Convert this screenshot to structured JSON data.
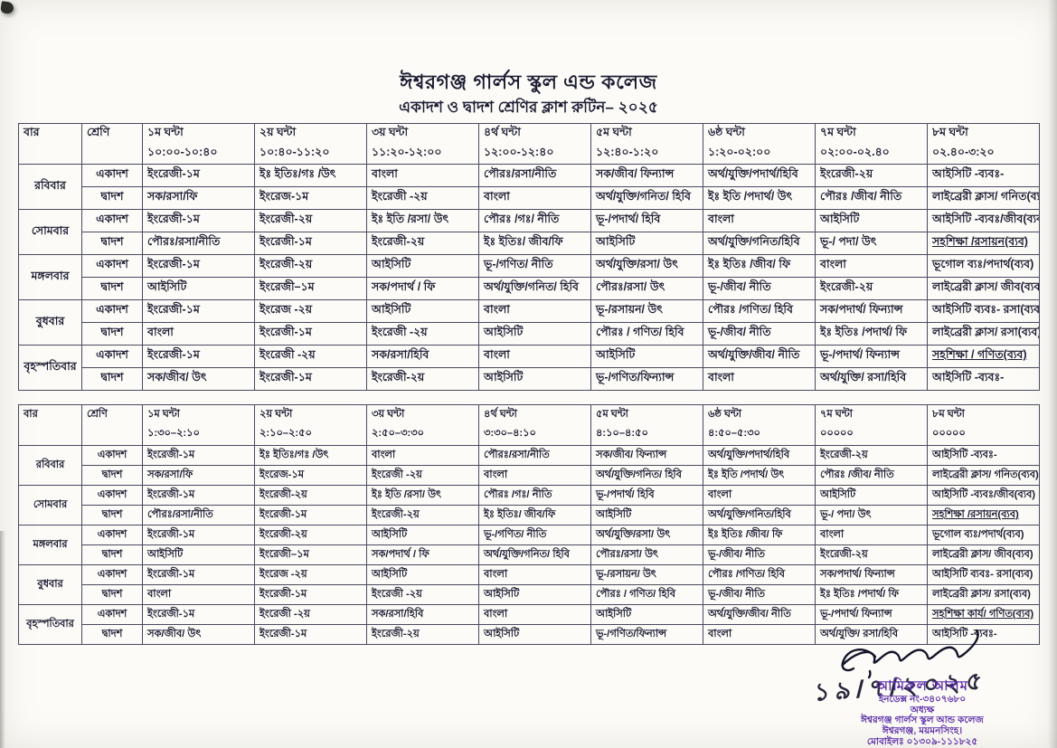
{
  "page": {
    "title": "ঈশ্বরগঞ্জ গার্লস স্কুল এন্ড কলেজ",
    "subtitle": "একাদশ ও দ্বাদশ শ্রেণির ক্লাশ রুটিন– ২০২৫"
  },
  "colors": {
    "ink": "#1d1d33",
    "border": "#4a4a5e",
    "stamp": "#5b2da8"
  },
  "tables": [
    {
      "day_label": "বার",
      "class_label": "শ্রেণি",
      "periods": [
        {
          "name": "১ম ঘন্টা",
          "time": "১০:০০-১০:৪০"
        },
        {
          "name": "২য় ঘন্টা",
          "time": "১০:৪০-১১:২০"
        },
        {
          "name": "৩য় ঘন্টা",
          "time": "১১:২০-১২:০০"
        },
        {
          "name": "৪র্থ ঘন্টা",
          "time": "১২:০০-১২:৪০"
        },
        {
          "name": "৫ম ঘন্টা",
          "time": "১২:৪০-১:২০"
        },
        {
          "name": "৬ষ্ঠ ঘন্টা",
          "time": "১:২০-০২:০০"
        },
        {
          "name": "৭ম ঘন্টা",
          "time": "০২:০০-০২.৪০"
        },
        {
          "name": "৮ম ঘন্টা",
          "time": "০২.৪০-৩:২০"
        }
      ],
      "days": [
        {
          "name": "রবিবার",
          "rows": [
            {
              "class": "একাদশ",
              "cells": [
                "ইংরেজী-১ম",
                "ইঃ ইতিঃ/গঃ /উৎ",
                "বাংলা",
                "পৌরঃ/রসা/নীতি",
                "সক/জীব/ ফিন্যান্স",
                "অর্থ/যুক্তি/পদার্থ/হিবি",
                "ইংরেজী-২য়",
                "আইসিটি -ব্যবঃ-"
              ]
            },
            {
              "class": "দ্বাদশ",
              "cells": [
                "সক/রসা/ফি",
                "ইংরেজ-১ম",
                "ইংরেজী -২য়",
                "বাংলা",
                "অর্থ/যুক্তি/গনিত/ হিবি",
                "ইঃ ইতি /পদার্থ/ উৎ",
                "পৌরঃ /জীব/ নীতি",
                "লাইব্রেরী ক্লাস/ গনিত(ব্যব)"
              ]
            }
          ]
        },
        {
          "name": "সোমবার",
          "rows": [
            {
              "class": "একাদশ",
              "cells": [
                "ইংরেজী-১ম",
                "ইংরেজী-২য়",
                "ইঃ ইতি /রসা/ উৎ",
                "পৌরঃ /গঃ/ নীতি",
                "ভূ-/পদার্থ/ হিবি",
                "বাংলা",
                "আইসিটি",
                "আইসিটি -ব্যবঃ/জীব(ব্যব)"
              ]
            },
            {
              "class": "দ্বাদশ",
              "cells": [
                "পৌরঃ/রসা/নীতি",
                "ইংরেজী-১ম",
                "ইংরেজী-২য়",
                "ইঃ ইতিঃ/ জীব/ফি",
                "আইসিটি",
                "অর্থ/যুক্তি/গনিত/হিবি",
                "ভূ-/ পদা/ উৎ",
                "সহশিক্ষা /রসায়ন(ব্যব)"
              ]
            }
          ]
        },
        {
          "name": "মঙ্গলবার",
          "rows": [
            {
              "class": "একাদশ",
              "cells": [
                "ইংরেজী-১ম",
                "ইংরেজী-২য়",
                "আইসিটি",
                "ভূ-/গণিত/ নীতি",
                "অর্থ/যুক্তি/রসা/ উৎ",
                "ইঃ ইতিঃ /জীব/ ফি",
                "বাংলা",
                "ভূগোল ব্যঃ/পদার্থ(ব্যব)"
              ]
            },
            {
              "class": "দ্বাদশ",
              "cells": [
                "আইসিটি",
                "ইংরেজী–১ম",
                "সক/পদার্থ / ফি",
                "অর্থ/যুক্তি/গনিত/ হিবি",
                "পৌরঃ/রসা/ উৎ",
                "ভূ-/জীব/ নীতি",
                "ইংরেজী-২য়",
                "লাইব্রেরী ক্লাস/ জীব(ব্যব)"
              ]
            }
          ]
        },
        {
          "name": "বুধবার",
          "rows": [
            {
              "class": "একাদশ",
              "cells": [
                "ইংরেজী-১ম",
                "ইংরেজ -২য়",
                "আইসিটি",
                "বাংলা",
                "ভূ-/রসায়ন/ উৎ",
                "পৌরঃ /গণিত/ হিবি",
                "সক/পদার্থ/ ফিন্যান্স",
                "আইসিটি ব্যবঃ- রসা(ব্যব)"
              ]
            },
            {
              "class": "দ্বাদশ",
              "cells": [
                "বাংলা",
                "ইংরেজী-১ম",
                "ইংরেজী -২য়",
                "আইসিটি",
                "পৌরঃ / গণিত/ হিবি",
                "ভূ-/জীব/ নীতি",
                "ইঃ ইতিঃ /পদার্থ/ ফি",
                "লাইব্রেরী ক্লাস/ রসা(ব্যব)"
              ]
            }
          ]
        },
        {
          "name": "বৃহস্পতিবার",
          "rows": [
            {
              "class": "একাদশ",
              "cells": [
                "ইংরেজী-১ম",
                "ইংরেজী -২য়",
                "সক/রসা/হিবি",
                "বাংলা",
                "আইসিটি",
                "অর্থ/যুক্তি/জীব/ নীতি",
                "ভূ-/পদার্থ/ ফিন্যান্স",
                "সহশিক্ষা / গণিত(ব্যব)"
              ]
            },
            {
              "class": "দ্বাদশ",
              "cells": [
                "সক/জীব/ উৎ",
                "ইংরেজী-১ম",
                "ইংরেজী-২য়",
                "আইসিটি",
                "ভূ-/গণিত/ফিন্যান্স",
                "বাংলা",
                "অর্থ/যুক্তি/ রসা/হিবি",
                "আইসিটি -ব্যবঃ-"
              ]
            }
          ]
        }
      ],
      "underlined": [
        [
          1,
          1,
          7
        ],
        [
          4,
          0,
          7
        ]
      ]
    },
    {
      "day_label": "বার",
      "class_label": "শ্রেণি",
      "periods": [
        {
          "name": "১ম ঘন্টা",
          "time": "১:৩০–২:১০"
        },
        {
          "name": "২য় ঘন্টা",
          "time": "২:১০–২:৫০"
        },
        {
          "name": "৩য় ঘন্টা",
          "time": "২:৫০–৩:৩০"
        },
        {
          "name": "৪র্থ ঘন্টা",
          "time": "৩:৩০–৪:১০"
        },
        {
          "name": "৫ম ঘন্টা",
          "time": "৪:১০–৪:৫০"
        },
        {
          "name": "৬ষ্ঠ ঘন্টা",
          "time": "৪:৫০–৫:৩০"
        },
        {
          "name": "৭ম ঘন্টা",
          "time": "০০০০০"
        },
        {
          "name": "৮ম ঘন্টা",
          "time": "০০০০০"
        }
      ],
      "days": [
        {
          "name": "রবিবার",
          "rows": [
            {
              "class": "একাদশ",
              "cells": [
                "ইংরেজী-১ম",
                "ইঃ ইতিঃ/গঃ /উৎ",
                "বাংলা",
                "পৌরঃ/রসা/নীতি",
                "সক/জীব/ ফিন্যান্স",
                "অর্থ/যুক্তি/পদার্থ/হিবি",
                "ইংরেজী-২য়",
                "আইসিটি -ব্যবঃ-"
              ]
            },
            {
              "class": "দ্বাদশ",
              "cells": [
                "সক/রসা/ফি",
                "ইংরেজ-১ম",
                "ইংরেজী -২য়",
                "বাংলা",
                "অর্থ/যুক্তি/গনিত/ হিবি",
                "ইঃ ইতি /পদার্থ/ উৎ",
                "পৌরঃ /জীব/ নীতি",
                "লাইব্রেরী ক্লাস/ গনিত(ব্যব)"
              ]
            }
          ]
        },
        {
          "name": "সোমবার",
          "rows": [
            {
              "class": "একাদশ",
              "cells": [
                "ইংরেজী-১ম",
                "ইংরেজী-২য়",
                "ইঃ ইতি /রসা/ উৎ",
                "পৌরঃ /গঃ/ নীতি",
                "ভূ-/পদার্থ/ হিবি",
                "বাংলা",
                "আইসিটি",
                "আইসিটি -ব্যবঃ/জীব(ব্যব)"
              ]
            },
            {
              "class": "দ্বাদশ",
              "cells": [
                "পৌরঃ/রসা/নীতি",
                "ইংরেজী-১ম",
                "ইংরেজী-২য়",
                "ইঃ ইতিঃ/ জীব/ফি",
                "আইসিটি",
                "অর্থ/যুক্তি/গনিত/হিবি",
                "ভূ-/ পদা/ উৎ",
                "সহশিক্ষা /রসায়ন(ব্যব)"
              ]
            }
          ]
        },
        {
          "name": "মঙ্গলবার",
          "rows": [
            {
              "class": "একাদশ",
              "cells": [
                "ইংরেজী-১ম",
                "ইংরেজী-২য়",
                "আইসিটি",
                "ভূ-/গণিত/ নীতি",
                "অর্থ/যুক্তি/রসা/ উৎ",
                "ইঃ ইতিঃ /জীব/ ফি",
                "বাংলা",
                "ভূগোল ব্যঃ/পদার্থ(ব্যব)"
              ]
            },
            {
              "class": "দ্বাদশ",
              "cells": [
                "আইসিটি",
                "ইংরেজী–১ম",
                "সক/পদার্থ / ফি",
                "অর্থ/যুক্তি/গনিত/ হিবি",
                "পৌরঃ/রসা/ উৎ",
                "ভূ-/জীব/ নীতি",
                "ইংরেজী-২য়",
                "লাইব্রেরী ক্লাস/ জীব(ব্যব)"
              ]
            }
          ]
        },
        {
          "name": "বুধবার",
          "rows": [
            {
              "class": "একাদশ",
              "cells": [
                "ইংরেজী-১ম",
                "ইংরেজ -২য়",
                "আইসিটি",
                "বাংলা",
                "ভূ-/রসায়ন/ উৎ",
                "পৌরঃ /গণিত/ হিবি",
                "সক/পদার্থ/ ফিন্যান্স",
                "আইসিটি ব্যবঃ- রসা(ব্যব)"
              ]
            },
            {
              "class": "দ্বাদশ",
              "cells": [
                "বাংলা",
                "ইংরেজী-১ম",
                "ইংরেজী -২য়",
                "আইসিটি",
                "পৌরঃ / গণিত/ হিবি",
                "ভূ-/জীব/ নীতি",
                "ইঃ ইতিঃ /পদার্থ/ ফি",
                "লাইব্রেরী ক্লাস/ রসা(ব্যব)"
              ]
            }
          ]
        },
        {
          "name": "বৃহস্পতিবার",
          "rows": [
            {
              "class": "একাদশ",
              "cells": [
                "ইংরেজী-১ম",
                "ইংরেজী -২য়",
                "সক/রসা/হিবি",
                "বাংলা",
                "আইসিটি",
                "অর্থ/যুক্তি/জীব/ নীতি",
                "ভূ-/পদার্থ/ ফিন্যান্স",
                "সহশিক্ষা কার্য/ গণিত(ব্যব)"
              ]
            },
            {
              "class": "দ্বাদশ",
              "cells": [
                "সক/জীব/ উৎ",
                "ইংরেজী-১ম",
                "ইংরেজী-২য়",
                "আইসিটি",
                "ভূ-/গণিত/ফিন্যান্স",
                "বাংলা",
                "অর্থ/যুক্তি/ রসা/হিবি",
                "আইসিটি -ব্যবঃ-"
              ]
            }
          ]
        }
      ],
      "underlined": [
        [
          1,
          1,
          7
        ],
        [
          4,
          0,
          7
        ]
      ]
    }
  ],
  "signature": {
    "handwritten_date": "১৯/৭/২০২৫",
    "stamp": {
      "name": "আমিরুল আলম",
      "index_no": "ইনডেক্স নং-৩৪০৭৬৮০",
      "designation": "অধ্যক্ষ",
      "institution": "ঈশ্বরগঞ্জ গার্লস স্কুল আন্ড কলেজ",
      "address": "ঈশ্বরগঞ্জ, ময়মনসিংহ।",
      "mobile": "মোবাইলঃ ০১৩০৯-১১১৮২৫"
    }
  }
}
